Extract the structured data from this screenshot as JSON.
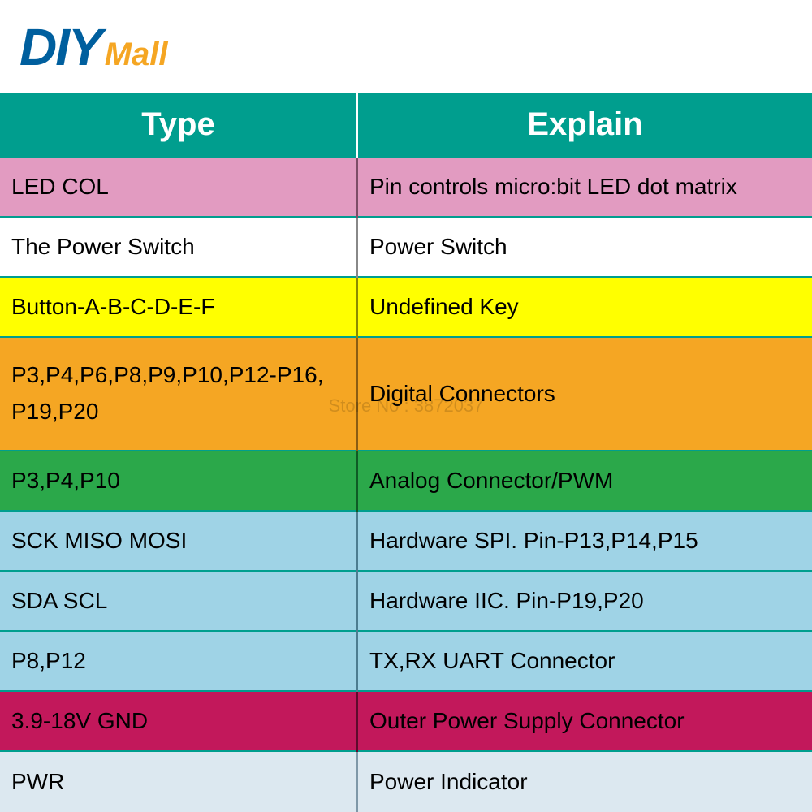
{
  "logo": {
    "diy": "DIY",
    "mall": "Mall",
    "diy_color": "#005f9e",
    "mall_color": "#f5a623",
    "y_dot_color": "#f5a623"
  },
  "header": {
    "type": "Type",
    "explain": "Explain",
    "bg": "#009e8e",
    "sep": "#ffffff",
    "text_color": "#ffffff"
  },
  "rows": [
    {
      "type": "LED COL",
      "explain": "Pin controls micro:bit LED dot matrix",
      "bg": "#e29bc1",
      "sep": "#7d4d66",
      "txt": "#000000"
    },
    {
      "type": "The Power Switch",
      "explain": "Power Switch",
      "bg": "#ffffff",
      "sep": "#888888",
      "txt": "#000000"
    },
    {
      "type": "Button-A-B-C-D-E-F",
      "explain": "Undefined Key",
      "bg": "#ffff00",
      "sep": "#8a8a00",
      "txt": "#000000"
    },
    {
      "type": "P3,P4,P6,P8,P9,P10,P12-P16, P19,P20",
      "explain": "Digital Connectors",
      "bg": "#f5a623",
      "sep": "#8a5d13",
      "txt": "#000000"
    },
    {
      "type": "P3,P4,P10",
      "explain": "Analog Connector/PWM",
      "bg": "#2ba84a",
      "sep": "#0f5a25",
      "txt": "#000000"
    },
    {
      "type": "SCK MISO MOSI",
      "explain": "Hardware SPI. Pin-P13,P14,P15",
      "bg": "#9fd3e6",
      "sep": "#4d7d90",
      "txt": "#000000"
    },
    {
      "type": "SDA SCL",
      "explain": "Hardware IIC. Pin-P19,P20",
      "bg": "#9fd3e6",
      "sep": "#4d7d90",
      "txt": "#000000"
    },
    {
      "type": "P8,P12",
      "explain": "TX,RX UART Connector",
      "bg": "#9fd3e6",
      "sep": "#4d7d90",
      "txt": "#000000"
    },
    {
      "type": "3.9-18V GND",
      "explain": "Outer Power Supply Connector",
      "bg": "#c2185b",
      "sep": "#5e0b2c",
      "txt": "#000000"
    },
    {
      "type": "PWR",
      "explain": "Power Indicator",
      "bg": "#dce8f0",
      "sep": "#7f98a8",
      "txt": "#000000"
    }
  ],
  "row_border_color": "#009e8e",
  "watermark": "Store No : 3872037",
  "col1_width_pct": 44,
  "col2_width_pct": 56
}
